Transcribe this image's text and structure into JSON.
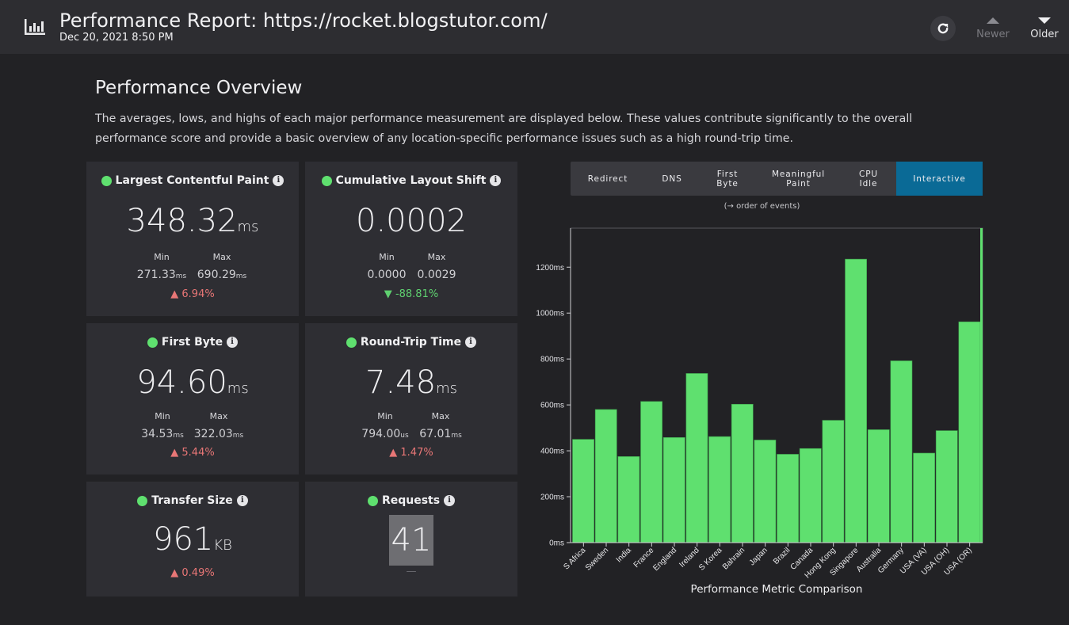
{
  "header": {
    "title": "Performance Report: https://rocket.blogstutor.com/",
    "subtitle": "Dec 20, 2021 8:50 PM",
    "newer_label": "Newer",
    "older_label": "Older"
  },
  "overview": {
    "title": "Performance Overview",
    "description": "The averages, lows, and highs of each major performance measurement are displayed below. These values contribute significantly to the overall performance score and provide a basic overview of any location-specific performance issues such as a high round-trip time."
  },
  "cards": {
    "lcp": {
      "title": "Largest Contentful Paint",
      "value": "348.32",
      "unit": "ms",
      "min_label": "Min",
      "max_label": "Max",
      "min": "271.33",
      "min_unit": "ms",
      "max": "690.29",
      "max_unit": "ms",
      "delta": "6.94%"
    },
    "cls": {
      "title": "Cumulative Layout Shift",
      "value": "0.0002",
      "min_label": "Min",
      "max_label": "Max",
      "min": "0.0000",
      "max": "0.0029",
      "delta": "-88.81%"
    },
    "fb": {
      "title": "First Byte",
      "value": "94.60",
      "unit": "ms",
      "min_label": "Min",
      "max_label": "Max",
      "min": "34.53",
      "min_unit": "ms",
      "max": "322.03",
      "max_unit": "ms",
      "delta": "5.44%"
    },
    "rtt": {
      "title": "Round-Trip Time",
      "value": "7.48",
      "unit": "ms",
      "min_label": "Min",
      "max_label": "Max",
      "min": "794.00",
      "min_unit": "us",
      "max": "67.01",
      "max_unit": "ms",
      "delta": "1.47%"
    },
    "ts": {
      "title": "Transfer Size",
      "value": "961",
      "unit": "KB",
      "delta": "0.49%"
    },
    "req": {
      "title": "Requests",
      "value": "41",
      "delta": "—"
    }
  },
  "tabs": [
    {
      "label": "Redirect",
      "active": false
    },
    {
      "label": "DNS",
      "active": false
    },
    {
      "label": "First Byte",
      "active": false
    },
    {
      "label": "Meaningful Paint",
      "active": false
    },
    {
      "label": "CPU Idle",
      "active": false
    },
    {
      "label": "Interactive",
      "active": true
    }
  ],
  "order_note": "(→ order of events)",
  "colors": {
    "good": "#5fe06f",
    "bad": "#e87676",
    "accent": "#0a6a96",
    "bar": "#5fe06f"
  },
  "chart_data": {
    "type": "bar",
    "xlabel": "Performance Metric Comparison",
    "ylabel": "",
    "ylim": [
      0,
      1370
    ],
    "y_ticks": [
      0,
      200,
      400,
      600,
      800,
      1000,
      1200
    ],
    "y_tick_suffix": "ms",
    "categories": [
      "S Africa",
      "Sweden",
      "India",
      "France",
      "England",
      "Ireland",
      "S Korea",
      "Bahrain",
      "Japan",
      "Brazil",
      "Canada",
      "Hong Kong",
      "Singapore",
      "Australia",
      "Germany",
      "USA (VA)",
      "USA (OH)",
      "USA (OR)"
    ],
    "values": [
      450,
      580,
      375,
      615,
      458,
      737,
      462,
      603,
      447,
      385,
      410,
      533,
      1235,
      492,
      792,
      390,
      488,
      962
    ]
  }
}
